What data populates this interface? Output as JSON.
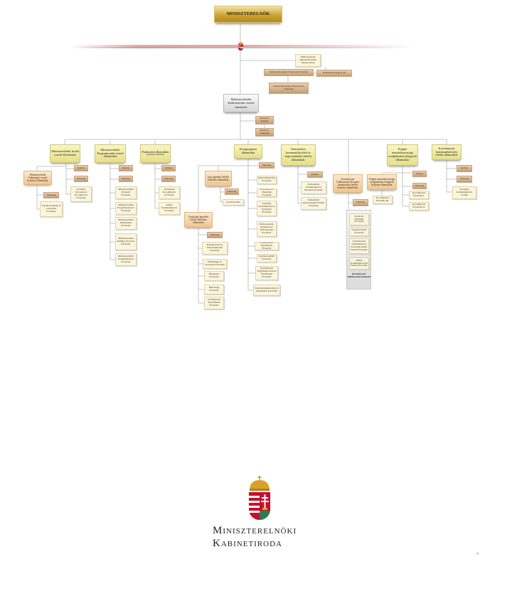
{
  "nodes": {
    "pm": "MINISZTERELNÖK",
    "nbfo": "Miniszterelnök nemzetbiztonsági főtanácsadója",
    "nbkab": "Nemzetbiztonsági Főtanácsadói Kabinet",
    "nbiroda": "Nemzetbiztonsági Iroda",
    "nbtit": "Nemzetbiztonsági Főtanácsadói Titkárság",
    "min": "Miniszterelnöki Kabinetiroda vezető miniszter",
    "minkab": "Miniszteri Kabinet",
    "mintit": "Miniszteri Titkárság",
    "s1": "Miniszterelnöki Irodát vezető államtitkár",
    "s1d": "Miniszterelnöki Titkárságot vezető helyettes államtitkár",
    "s1dtit": "Titkárság",
    "s1dfo": "Ügyfélszolgálati és Levelezési Főosztály",
    "s1kab": "Kabinet",
    "s1tit": "Titkárság",
    "s1fo": "Stratégiai Tervezési és Koordinációs Főosztály",
    "s2": "Miniszterelnöki Programirodát vezető államtitkár",
    "s2kab": "Kabinet",
    "s2tit": "Titkárság",
    "s2f1": "Miniszterelnöki Protokoll Főosztály",
    "s2f2": "Miniszterelnöki Programszervező Főosztály",
    "s2f3": "Miniszterelnöki Külpolitikai Főosztály",
    "s2f4": "Miniszterelnöki Külügyi Szervező Főosztály",
    "s2f5": "Miniszterelnöki Kommunikációs Főosztály",
    "s3": "Parlamenti államtitkár",
    "s3sub": "(parlamenti államtitkár)",
    "s3kab": "Kabinet",
    "s3tit": "Titkárság",
    "s3f1": "Parlamenti Koordinációs Főosztály",
    "s3f2": "Online Kommunikációs Főosztály",
    "s4": "Közigazgatási államtitkár",
    "s4tit": "Titkárság",
    "s4j": "Jogi ügyekért felelős helyettes államtitkár",
    "s4jtit": "Titkárság",
    "s4jfo": "Jogi Főosztály",
    "s4g": "Gazdasági ügyekért felelős helyettes államtitkár",
    "s4gtit": "Titkárság",
    "s4g1": "Költségvetési és Infrastrukturális Főosztály",
    "s4g2": "Humánügyi és Szervezeti Főosztály",
    "s4g3": "Beszerzési Főosztály",
    "s4g4": "Biztonsági Főosztály",
    "s4g5": "Kormányzati Informatikai Főosztály",
    "s4r1": "Belső Ellenőrzési Főosztály",
    "s4r2": "Kormányzati Titkársági Főosztály",
    "s4r3": "Személyi Nyilvántartási és Igazgatási Főosztály",
    "s4r4": "Közbeszerzési, Igazgatási és Nyilvántartási Főosztály",
    "s4r5": "Üzemeltetési Ügyintézési Főosztály",
    "s4r6": "Ügyfélszolgálati Főosztály",
    "s4r7": "Kormányzati Ügyfélkapcsolati és Ügyintézési Főosztály",
    "s4r8": "Dokumentumkezelési és Ügyintézési Főosztály",
    "s5": "Nemzetközi kommunikációért és kapcsolatokért felelős államtitkár",
    "s5kab": "Kabinet",
    "s5f1": "Nemzetközi Kommunikációs Feladatú Főosztály",
    "s5f2": "Nemzetközi Kapcsolatokért Felelős Főosztály",
    "ktk": "Kormányzati Tájékoztatási Központ irányításáért felelős helyettes államtitkár",
    "ktktit": "Titkárság",
    "ktk1": "Tartalom-előállítási Főosztály",
    "ktk2": "Sajtószervezési Főosztály",
    "ktk3": "Kormányzati Kommunikáció Koordinációjáért Felelős Főosztály",
    "ktk4": "Online Kommunikációért Felelős Főosztály",
    "s6": "Polgári nemzetbiztonsági szolgálatokat felügyelő államtitkár",
    "s6d": "Polgári nemzetbiztonsági szolgálatokat felügyelő helyettes államtitkár",
    "s6f3": "Koordinációs Főosztály III.",
    "s6kab": "Kabinet",
    "s6tit": "Titkárság",
    "s6f1": "Koordinációs Főosztály I.",
    "s6f2": "Koordinációs Főosztály II.",
    "s7": "Kormányzati kommunikációért felelős államtitkár",
    "s7kab": "Kabinet",
    "s7tit": "Titkárság",
    "s7f1": "Stratégiai Kommunikációs Irodája"
  },
  "ktk_panel_label": "Kormányzati Tájékoztatási Központ",
  "logo": {
    "line1": "Miniszterelnöki",
    "line2": "Kabinetiroda"
  },
  "page_mark": "〃",
  "colors": {
    "gold": "#c9a02f",
    "state_secretary": "#e6df8a",
    "deputy": "#f1c58f",
    "office": "#c79d71",
    "department": "#fbf5dc",
    "line": "#b5b5b5"
  }
}
